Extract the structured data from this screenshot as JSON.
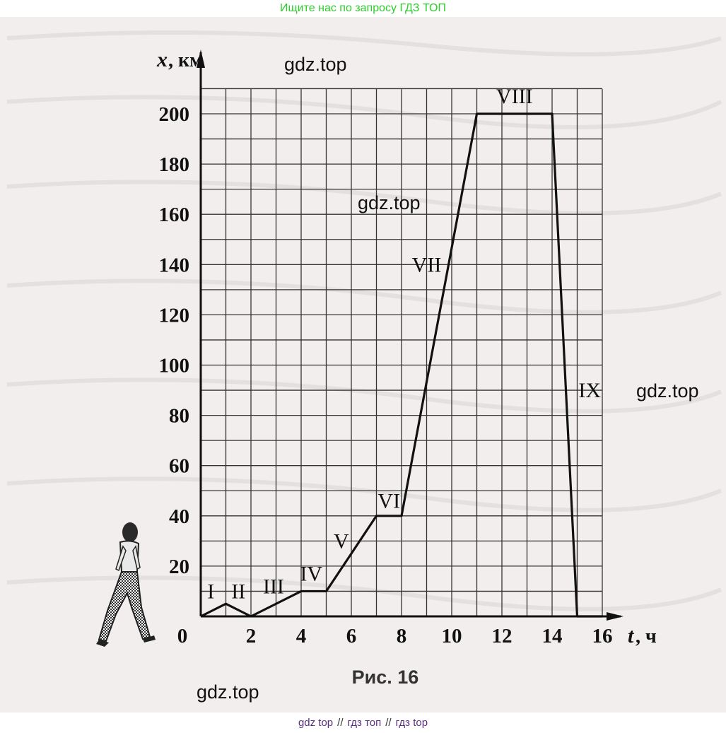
{
  "header": {
    "search_link": "Ищите нас по запросу ГДЗ ТОП",
    "link_color": "#2ecc2e"
  },
  "footer": {
    "links": [
      "gdz top",
      "гдз топ",
      "гдз top"
    ],
    "separator": "//",
    "link_color": "#5b2d86"
  },
  "watermarks": [
    "gdz.top",
    "gdz.top",
    "gdz.top",
    "gdz.top"
  ],
  "figure": {
    "caption": "Рис. 16",
    "walker_icon": "walking-man-icon"
  },
  "chart_data": {
    "type": "line",
    "xlabel": "t, ч",
    "ylabel": "x, км",
    "x_label_var": "t",
    "x_label_unit": ", ч",
    "y_label_var": "x",
    "y_label_unit": ", км",
    "xlim": [
      0,
      16
    ],
    "ylim": [
      0,
      200
    ],
    "x_ticks": [
      0,
      2,
      4,
      6,
      8,
      10,
      12,
      14,
      16
    ],
    "y_ticks": [
      20,
      40,
      60,
      80,
      100,
      120,
      140,
      160,
      180,
      200
    ],
    "grid": true,
    "grid_step_x": 1,
    "grid_step_y": 10,
    "series": [
      {
        "x": [
          0,
          1,
          2,
          4,
          5,
          7,
          8,
          11,
          14,
          15,
          16
        ],
        "y": [
          0,
          5,
          0,
          10,
          10,
          40,
          40,
          200,
          200,
          0,
          0
        ]
      }
    ],
    "segment_labels": [
      {
        "label": "I",
        "x": 0.4,
        "y": 10
      },
      {
        "label": "II",
        "x": 1.5,
        "y": 10
      },
      {
        "label": "III",
        "x": 2.9,
        "y": 12
      },
      {
        "label": "IV",
        "x": 4.4,
        "y": 17
      },
      {
        "label": "V",
        "x": 5.6,
        "y": 30
      },
      {
        "label": "VI",
        "x": 7.5,
        "y": 46
      },
      {
        "label": "VII",
        "x": 9.0,
        "y": 140
      },
      {
        "label": "VIII",
        "x": 12.5,
        "y": 207
      },
      {
        "label": "IX",
        "x": 15.5,
        "y": 90
      }
    ]
  }
}
